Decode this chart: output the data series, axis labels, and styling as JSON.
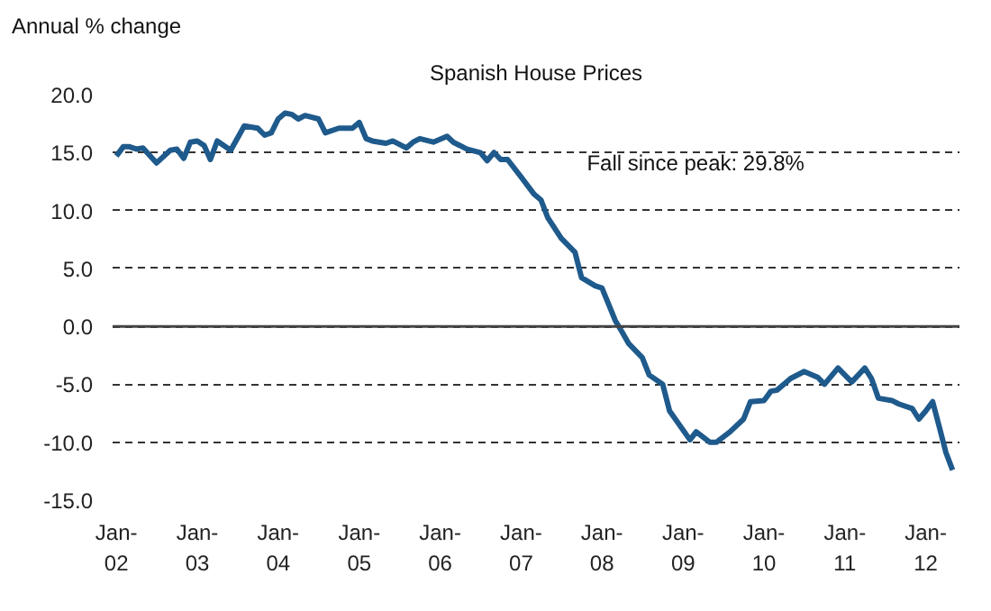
{
  "chart_data": {
    "type": "line",
    "title": "Spanish House Prices",
    "ylabel": "Annual % change",
    "annotations": [
      "Fall since peak: 29.8%"
    ],
    "x": [
      "2002-01",
      "2002-02",
      "2002-03",
      "2002-04",
      "2002-05",
      "2002-07",
      "2002-09",
      "2002-10",
      "2002-11",
      "2002-12",
      "2003-01",
      "2003-02",
      "2003-03",
      "2003-04",
      "2003-06",
      "2003-08",
      "2003-10",
      "2003-11",
      "2003-12",
      "2004-01",
      "2004-02",
      "2004-03",
      "2004-04",
      "2004-05",
      "2004-07",
      "2004-08",
      "2004-10",
      "2004-12",
      "2005-01",
      "2005-02",
      "2005-03",
      "2005-05",
      "2005-06",
      "2005-08",
      "2005-09",
      "2005-10",
      "2005-12",
      "2006-02",
      "2006-03",
      "2006-05",
      "2006-07",
      "2006-08",
      "2006-09",
      "2006-10",
      "2006-11",
      "2007-01",
      "2007-03",
      "2007-04",
      "2007-05",
      "2007-07",
      "2007-09",
      "2007-10",
      "2007-12",
      "2008-01",
      "2008-03",
      "2008-04",
      "2008-05",
      "2008-07",
      "2008-08",
      "2008-10",
      "2008-11",
      "2009-02",
      "2009-03",
      "2009-05",
      "2009-06",
      "2009-08",
      "2009-10",
      "2009-11",
      "2010-01",
      "2010-02",
      "2010-03",
      "2010-05",
      "2010-07",
      "2010-09",
      "2010-10",
      "2010-12",
      "2011-02",
      "2011-04",
      "2011-05",
      "2011-06",
      "2011-08",
      "2011-09",
      "2011-11",
      "2011-12",
      "2012-01",
      "2012-02",
      "2012-03",
      "2012-04",
      "2012-05"
    ],
    "series": [
      {
        "color": "#1f5a8c",
        "values": [
          14.7,
          15.5,
          15.5,
          15.3,
          15.4,
          14.1,
          15.2,
          15.3,
          14.5,
          15.9,
          16.0,
          15.6,
          14.4,
          16.0,
          15.2,
          17.3,
          17.1,
          16.5,
          16.7,
          17.9,
          18.4,
          18.3,
          17.9,
          18.2,
          17.9,
          16.7,
          17.1,
          17.1,
          17.6,
          16.2,
          16.0,
          15.8,
          16.0,
          15.4,
          15.9,
          16.2,
          15.9,
          16.4,
          15.9,
          15.3,
          15.0,
          14.3,
          15.0,
          14.4,
          14.4,
          12.9,
          11.4,
          10.9,
          9.4,
          7.6,
          6.4,
          4.2,
          3.5,
          3.3,
          0.5,
          -0.5,
          -1.5,
          -2.7,
          -4.2,
          -5.0,
          -7.3,
          -9.8,
          -9.1,
          -10.0,
          -10.0,
          -9.1,
          -8.0,
          -6.5,
          -6.4,
          -5.6,
          -5.5,
          -4.5,
          -3.9,
          -4.4,
          -5.0,
          -3.6,
          -4.8,
          -3.6,
          -4.5,
          -6.2,
          -6.4,
          -6.7,
          -7.1,
          -8.0,
          -7.3,
          -6.5,
          -8.6,
          -10.9,
          -12.4
        ]
      }
    ],
    "xlim": [
      "2001-12-15",
      "2012-06-01"
    ],
    "xticks": [
      {
        "value": "2002-01",
        "label": "Jan-\n02"
      },
      {
        "value": "2003-01",
        "label": "Jan-\n03"
      },
      {
        "value": "2004-01",
        "label": "Jan-\n04"
      },
      {
        "value": "2005-01",
        "label": "Jan-\n05"
      },
      {
        "value": "2006-01",
        "label": "Jan-\n06"
      },
      {
        "value": "2007-01",
        "label": "Jan-\n07"
      },
      {
        "value": "2008-01",
        "label": "Jan-\n08"
      },
      {
        "value": "2009-01",
        "label": "Jan-\n09"
      },
      {
        "value": "2010-01",
        "label": "Jan-\n10"
      },
      {
        "value": "2011-01",
        "label": "Jan-\n11"
      },
      {
        "value": "2012-01",
        "label": "Jan-\n12"
      }
    ],
    "ylim": [
      -15,
      20
    ],
    "yticks": [
      {
        "value": -15,
        "label": "-15.0"
      },
      {
        "value": -10,
        "label": "-10.0"
      },
      {
        "value": -5,
        "label": "-5.0"
      },
      {
        "value": 0,
        "label": "0.0"
      },
      {
        "value": 5,
        "label": "5.0"
      },
      {
        "value": 10,
        "label": "10.0"
      },
      {
        "value": 15,
        "label": "15.0"
      },
      {
        "value": 20,
        "label": "20.0"
      }
    ],
    "grid": "y",
    "line_style": "solid",
    "marker": "none",
    "ref_lines": [
      {
        "axis": "y",
        "value": 0,
        "color": "#444444",
        "line_style": "solid"
      }
    ]
  }
}
